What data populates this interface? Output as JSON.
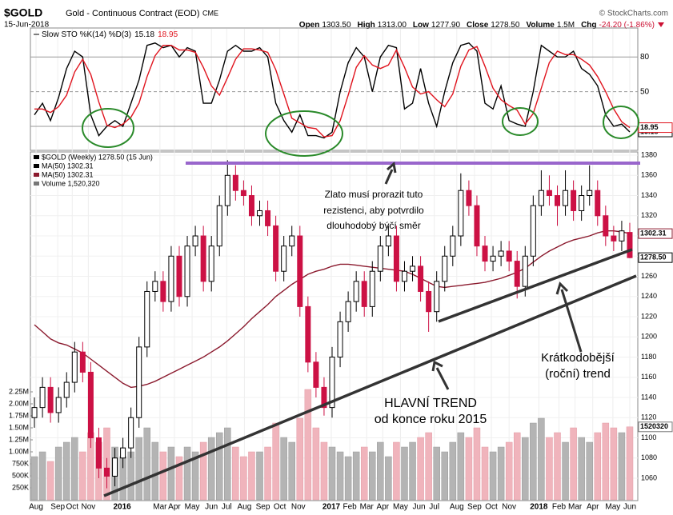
{
  "header": {
    "symbol": "$GOLD",
    "name": "Gold - Continuous Contract (EOD)",
    "exchange": "CME",
    "date": "15-Jun-2018",
    "source": "© StockCharts.com",
    "quote": [
      {
        "label": "Open",
        "value": "1303.50"
      },
      {
        "label": "High",
        "value": "1313.00"
      },
      {
        "label": "Low",
        "value": "1277.90"
      },
      {
        "label": "Close",
        "value": "1278.50"
      },
      {
        "label": "Volume",
        "value": "1.5M"
      },
      {
        "label": "Chg",
        "value": "-24.20 (-1.86%)"
      }
    ]
  },
  "chart_data": [
    {
      "type": "line",
      "title": "Slow STO %K(14) %D(3)",
      "ylim": [
        0,
        105
      ],
      "yticks": [
        80,
        50,
        20
      ],
      "grid": true,
      "series": [
        {
          "color": "#000000",
          "end_label": "15.18",
          "values": [
            30,
            40,
            25,
            45,
            70,
            85,
            80,
            30,
            12,
            20,
            25,
            20,
            40,
            60,
            90,
            92,
            88,
            90,
            80,
            88,
            85,
            40,
            40,
            60,
            85,
            90,
            85,
            85,
            88,
            80,
            40,
            25,
            15,
            30,
            12,
            12,
            10,
            15,
            50,
            75,
            88,
            80,
            50,
            80,
            90,
            88,
            35,
            40,
            70,
            40,
            20,
            50,
            75,
            90,
            92,
            85,
            40,
            35,
            55,
            25,
            22,
            20,
            50,
            90,
            85,
            80,
            80,
            85,
            70,
            65,
            55,
            30,
            20,
            22,
            15.18
          ]
        },
        {
          "color": "#e0141e",
          "end_label": "18.95",
          "values": [
            35,
            35,
            32,
            37,
            47,
            67,
            78,
            65,
            41,
            21,
            19,
            22,
            28,
            40,
            63,
            81,
            90,
            90,
            86,
            86,
            84,
            71,
            55,
            47,
            62,
            78,
            87,
            87,
            86,
            84,
            69,
            48,
            27,
            23,
            19,
            18,
            11,
            12,
            25,
            47,
            71,
            81,
            73,
            70,
            73,
            86,
            71,
            54,
            48,
            50,
            43,
            37,
            48,
            72,
            86,
            89,
            72,
            53,
            43,
            38,
            34,
            22,
            31,
            53,
            75,
            85,
            82,
            82,
            78,
            73,
            63,
            50,
            35,
            24,
            18.95
          ]
        }
      ]
    },
    {
      "type": "candlestick",
      "ylim": [
        1038.6,
        1383.2
      ],
      "yticks": [
        1060,
        1080,
        1100,
        1120,
        1140,
        1160,
        1180,
        1200,
        1220,
        1240,
        1260,
        1280,
        1300,
        1320,
        1340,
        1360,
        1380
      ],
      "y2lim": [
        0,
        7250000
      ],
      "y2ticks": [
        {
          "value": 250000,
          "label": "250K"
        },
        {
          "value": 500000,
          "label": "500K"
        },
        {
          "value": 750000,
          "label": "750K"
        },
        {
          "value": 1000000,
          "label": "1.00M"
        },
        {
          "value": 1250000,
          "label": "1.25M"
        },
        {
          "value": 1500000,
          "label": "1.50M"
        },
        {
          "value": 1750000,
          "label": "1.75M"
        },
        {
          "value": 2000000,
          "label": "2.00M"
        },
        {
          "value": 2250000,
          "label": "2.25M"
        }
      ],
      "xlim": [
        -0.5,
        74.5
      ],
      "xticks": [
        {
          "value": 0.2,
          "label": "Aug"
        },
        {
          "value": 2.9,
          "label": "Sep"
        },
        {
          "value": 4.7,
          "label": "Oct"
        },
        {
          "value": 6.7,
          "label": "Nov"
        },
        {
          "value": 10.9,
          "label": "2016"
        },
        {
          "value": 15.6,
          "label": "Mar"
        },
        {
          "value": 17.4,
          "label": "Apr"
        },
        {
          "value": 19.6,
          "label": "May"
        },
        {
          "value": 22,
          "label": "Jun"
        },
        {
          "value": 23.9,
          "label": "Jul"
        },
        {
          "value": 26.1,
          "label": "Aug"
        },
        {
          "value": 28.4,
          "label": "Sep"
        },
        {
          "value": 30.5,
          "label": "Oct"
        },
        {
          "value": 32.8,
          "label": "Nov"
        },
        {
          "value": 36.9,
          "label": "2017"
        },
        {
          "value": 39.2,
          "label": "Feb"
        },
        {
          "value": 41.3,
          "label": "Mar"
        },
        {
          "value": 43.3,
          "label": "Apr"
        },
        {
          "value": 45.5,
          "label": "May"
        },
        {
          "value": 47.8,
          "label": "Jun"
        },
        {
          "value": 49.7,
          "label": "Jul"
        },
        {
          "value": 52.5,
          "label": "Aug"
        },
        {
          "value": 54.7,
          "label": "Sep"
        },
        {
          "value": 56.8,
          "label": "Oct"
        },
        {
          "value": 59,
          "label": "Nov"
        },
        {
          "value": 62.7,
          "label": "2018"
        },
        {
          "value": 65.2,
          "label": "Feb"
        },
        {
          "value": 67.2,
          "label": "Mar"
        },
        {
          "value": 69.4,
          "label": "Apr"
        },
        {
          "value": 71.9,
          "label": "May"
        },
        {
          "value": 74,
          "label": "Jun"
        }
      ],
      "legend": [
        "$GOLD (Weekly) 1278.50 (15 Jun)",
        "MA(50) 1302.31",
        "MA(50) 1302.31",
        "Volume 1,520,320"
      ],
      "annotations": [
        {
          "lines": [
            "Zlato musí prorazit tuto",
            "rezistenci, aby potvrdilo",
            "dlouhodobý býčí směr"
          ]
        },
        {
          "lines": [
            "Krátkodobější",
            "(roční) trend"
          ]
        },
        {
          "lines": [
            "HLAVNÍ TREND",
            "od konce roku 2015"
          ]
        }
      ],
      "series": [
        {
          "up_color": "#000000",
          "down_color": "#cc1144",
          "end_label": "1278.50",
          "open": [
            1120,
            1130,
            1150,
            1125,
            1140,
            1155,
            1185,
            1165,
            1100,
            1070,
            1062,
            1080,
            1090,
            1120,
            1190,
            1245,
            1255,
            1235,
            1280,
            1240,
            1290,
            1300,
            1255,
            1290,
            1330,
            1360,
            1345,
            1340,
            1320,
            1325,
            1310,
            1265,
            1290,
            1300,
            1230,
            1175,
            1150,
            1130,
            1180,
            1215,
            1235,
            1255,
            1230,
            1265,
            1290,
            1300,
            1255,
            1265,
            1270,
            1245,
            1225,
            1255,
            1280,
            1300,
            1345,
            1330,
            1290,
            1275,
            1280,
            1285,
            1275,
            1250,
            1280,
            1330,
            1345,
            1340,
            1330,
            1345,
            1325,
            1340,
            1345,
            1320,
            1300,
            1295,
            1303.5
          ],
          "high": [
            1140,
            1160,
            1160,
            1150,
            1165,
            1195,
            1195,
            1175,
            1110,
            1080,
            1090,
            1100,
            1130,
            1200,
            1255,
            1265,
            1265,
            1290,
            1290,
            1300,
            1310,
            1310,
            1300,
            1340,
            1375,
            1370,
            1355,
            1350,
            1335,
            1335,
            1320,
            1300,
            1310,
            1310,
            1240,
            1185,
            1160,
            1190,
            1225,
            1245,
            1265,
            1265,
            1275,
            1300,
            1310,
            1310,
            1275,
            1280,
            1280,
            1255,
            1265,
            1290,
            1310,
            1362,
            1355,
            1340,
            1300,
            1290,
            1295,
            1295,
            1285,
            1290,
            1340,
            1365,
            1360,
            1350,
            1365,
            1355,
            1350,
            1370,
            1355,
            1330,
            1310,
            1315,
            1313
          ],
          "low": [
            1110,
            1120,
            1115,
            1115,
            1130,
            1145,
            1155,
            1090,
            1060,
            1050,
            1052,
            1070,
            1080,
            1110,
            1180,
            1235,
            1225,
            1225,
            1230,
            1230,
            1280,
            1245,
            1245,
            1280,
            1320,
            1335,
            1330,
            1310,
            1310,
            1300,
            1255,
            1255,
            1280,
            1220,
            1165,
            1140,
            1122,
            1120,
            1170,
            1205,
            1225,
            1220,
            1220,
            1255,
            1280,
            1245,
            1245,
            1255,
            1235,
            1205,
            1215,
            1245,
            1270,
            1290,
            1320,
            1280,
            1265,
            1265,
            1270,
            1265,
            1238,
            1240,
            1270,
            1320,
            1330,
            1310,
            1320,
            1315,
            1315,
            1330,
            1310,
            1290,
            1285,
            1285,
            1277.9
          ],
          "close": [
            1130,
            1150,
            1125,
            1140,
            1155,
            1185,
            1165,
            1100,
            1070,
            1062,
            1080,
            1090,
            1120,
            1190,
            1245,
            1255,
            1235,
            1280,
            1240,
            1290,
            1300,
            1255,
            1290,
            1330,
            1360,
            1345,
            1340,
            1320,
            1325,
            1310,
            1265,
            1290,
            1300,
            1230,
            1175,
            1150,
            1130,
            1180,
            1215,
            1235,
            1255,
            1230,
            1265,
            1290,
            1300,
            1255,
            1265,
            1270,
            1245,
            1225,
            1255,
            1280,
            1300,
            1345,
            1330,
            1290,
            1275,
            1280,
            1285,
            1275,
            1250,
            1280,
            1330,
            1345,
            1340,
            1330,
            1345,
            1325,
            1340,
            1345,
            1320,
            1300,
            1295,
            1305,
            1278.5
          ]
        },
        {
          "type": "line",
          "color": "#8b1a2e",
          "end_label": "1302.31",
          "values": [
            1212,
            1205,
            1198,
            1194,
            1192,
            1188,
            1184,
            1178,
            1172,
            1166,
            1160,
            1154,
            1150,
            1151,
            1153,
            1156,
            1160,
            1164,
            1168,
            1172,
            1176,
            1180,
            1185,
            1190,
            1196,
            1203,
            1210,
            1218,
            1225,
            1232,
            1240,
            1246,
            1252,
            1257,
            1262,
            1265,
            1267,
            1270,
            1272,
            1272,
            1271,
            1270,
            1269,
            1268,
            1267,
            1266,
            1265,
            1262,
            1258,
            1254,
            1250,
            1249,
            1250,
            1251,
            1252,
            1253,
            1254,
            1256,
            1258,
            1261,
            1264,
            1268,
            1274,
            1280,
            1285,
            1289,
            1293,
            1296,
            1298,
            1300,
            1303,
            1305,
            1305,
            1304,
            1302.31
          ]
        },
        {
          "type": "bar",
          "axis": "y2",
          "up_color": "#b4b4b4",
          "down_color": "#f0b4bc",
          "end_label": "1520320",
          "values": [
            900000,
            1000000,
            800000,
            1100000,
            1200000,
            1300000,
            1000000,
            1400000,
            1200000,
            1500000,
            1100000,
            900000,
            1000000,
            1300000,
            1500000,
            1200000,
            1000000,
            1100000,
            900000,
            1100000,
            1000000,
            1200000,
            1300000,
            1400000,
            1500000,
            1100000,
            900000,
            1000000,
            1000000,
            1100000,
            1600000,
            1300000,
            1200000,
            1700000,
            2300000,
            1500000,
            1200000,
            1100000,
            1000000,
            900000,
            1000000,
            1100000,
            1000000,
            1200000,
            900000,
            1200000,
            1100000,
            1200000,
            1300000,
            1400000,
            1100000,
            1000000,
            1200000,
            1400000,
            1300000,
            1500000,
            1100000,
            1000000,
            1100000,
            1200000,
            1400000,
            1300000,
            1600000,
            1700000,
            1300000,
            1400000,
            1200000,
            1500000,
            1300000,
            1200000,
            1400000,
            1600000,
            1500000,
            1400000,
            1520320
          ]
        }
      ]
    }
  ]
}
